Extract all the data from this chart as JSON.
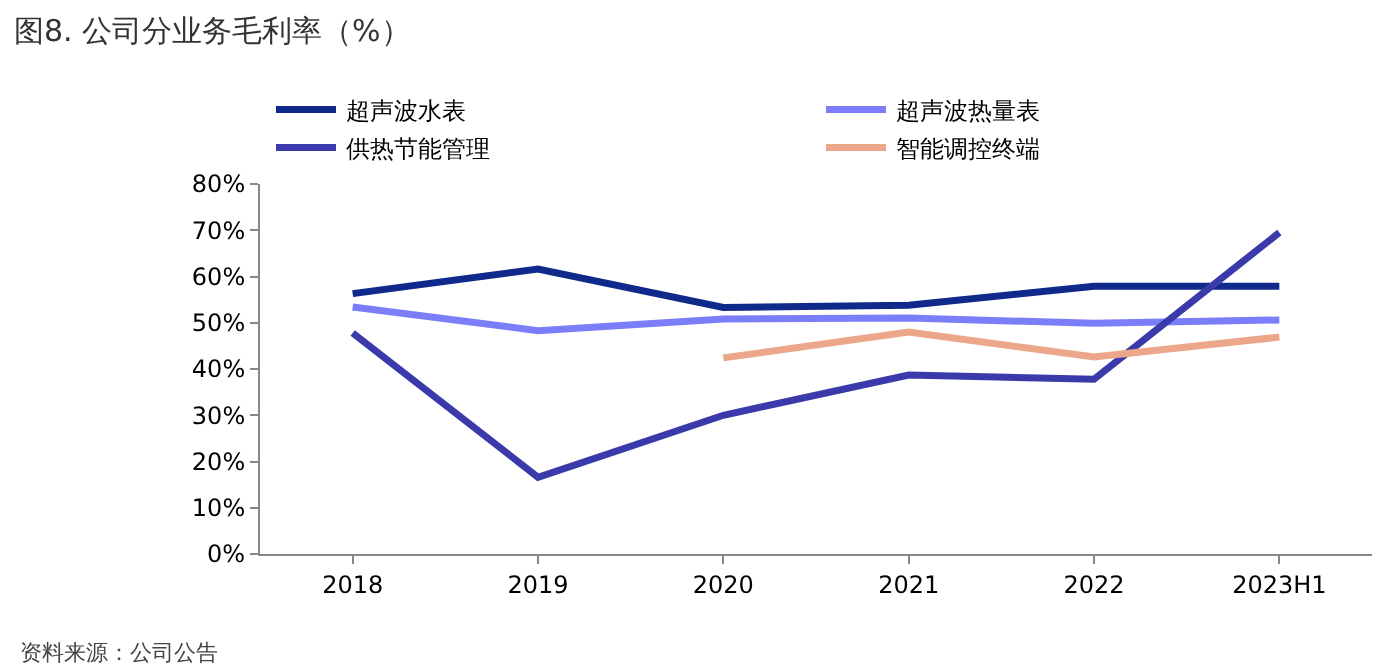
{
  "chart_data": {
    "type": "line",
    "title": "图8. 公司分业务毛利率（%）",
    "categories": [
      "2018",
      "2019",
      "2020",
      "2021",
      "2022",
      "2023H1"
    ],
    "series": [
      {
        "name": "超声波水表",
        "color": "#0f2a8a",
        "values": [
          56.3,
          61.6,
          53.3,
          53.8,
          57.9,
          57.9
        ]
      },
      {
        "name": "超声波热量表",
        "color": "#7b7ef8",
        "values": [
          53.4,
          48.3,
          50.8,
          51.0,
          49.9,
          50.6
        ]
      },
      {
        "name": "供热节能管理",
        "color": "#3a3aaa",
        "values": [
          47.8,
          16.6,
          30.0,
          38.7,
          37.8,
          69.5
        ]
      },
      {
        "name": "智能调控终端",
        "color": "#eca68a",
        "values": [
          null,
          null,
          42.4,
          48.0,
          42.6,
          46.9
        ]
      }
    ],
    "ylim": [
      0,
      80
    ],
    "yticks": [
      {
        "value": 0,
        "label": "0%"
      },
      {
        "value": 10,
        "label": "10%"
      },
      {
        "value": 20,
        "label": "20%"
      },
      {
        "value": 30,
        "label": "30%"
      },
      {
        "value": 40,
        "label": "40%"
      },
      {
        "value": 50,
        "label": "50%"
      },
      {
        "value": 60,
        "label": "60%"
      },
      {
        "value": 70,
        "label": "70%"
      },
      {
        "value": 80,
        "label": "80%"
      }
    ],
    "grid": false,
    "legend": "top",
    "marker": "none",
    "line_style": "solid",
    "annotations": [
      "资料来源：公司公告"
    ]
  }
}
